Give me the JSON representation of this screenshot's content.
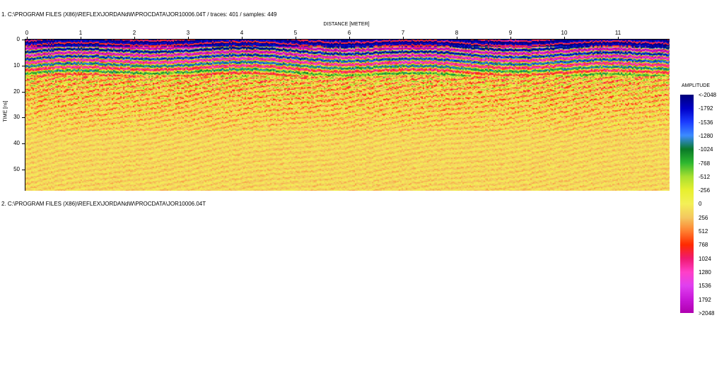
{
  "header1": "1. C:\\PROGRAM FILES (X86)\\REFLEX\\JORDANdW\\PROCDATA\\JOR10006.04T  / traces: 401 / samples: 449",
  "header2": "2. C:\\PROGRAM FILES (X86)\\REFLEX\\JORDANdW\\PROCDATA\\JOR10006.04T",
  "x_axis": {
    "label": "DISTANCE [METER]",
    "ticks": [
      "0",
      "1",
      "2",
      "3",
      "4",
      "5",
      "6",
      "7",
      "8",
      "9",
      "10",
      "11"
    ],
    "range": [
      0,
      12.0
    ]
  },
  "y_axis": {
    "label": "TIME [ns]",
    "ticks": [
      "0",
      "10",
      "20",
      "30",
      "40",
      "50"
    ],
    "range": [
      0,
      58
    ]
  },
  "colorbar": {
    "title": "AMPLITUDE",
    "labels": [
      "<-2048",
      "-1792",
      "-1536",
      "-1280",
      "-1024",
      "-768",
      "-512",
      "-256",
      "0",
      "256",
      "512",
      "768",
      "1024",
      "1280",
      "1536",
      "1792",
      ">2048"
    ],
    "colors": [
      "#00007a",
      "#0000c8",
      "#1c3cff",
      "#3d8cff",
      "#0a7a28",
      "#2fb830",
      "#a8e030",
      "#e8f030",
      "#f4f058",
      "#f4c860",
      "#ff8030",
      "#ff2a00",
      "#f01a70",
      "#ff40c8",
      "#e040f0",
      "#c818d8",
      "#b000b0"
    ]
  }
}
